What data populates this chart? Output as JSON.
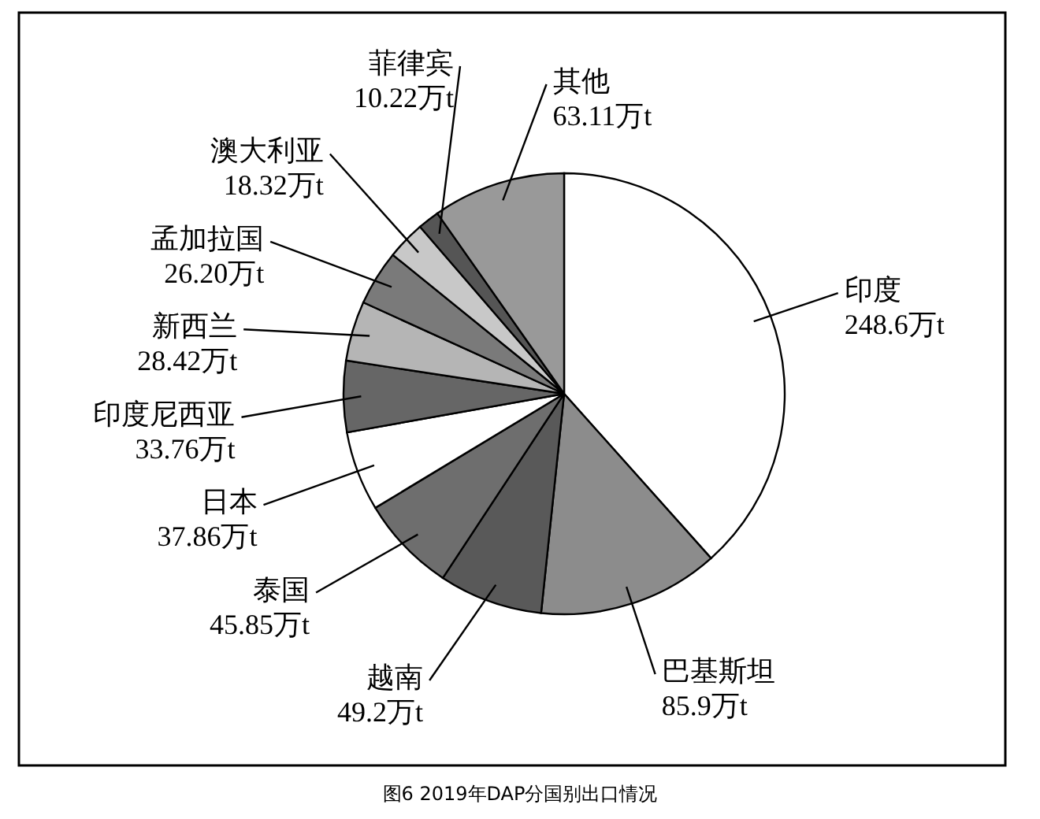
{
  "chart_data": {
    "type": "pie",
    "title": "图6 2019年DAP分国别出口情况",
    "categories": [
      "印度",
      "巴基斯坦",
      "越南",
      "泰国",
      "日本",
      "印度尼西亚",
      "新西兰",
      "孟加拉国",
      "澳大利亚",
      "菲律宾",
      "其他"
    ],
    "values": [
      248.6,
      85.9,
      49.2,
      45.85,
      37.86,
      33.76,
      28.42,
      26.2,
      18.32,
      10.22,
      63.11
    ],
    "value_labels": [
      "248.6万t",
      "85.9万t",
      "49.2万t",
      "45.85万t",
      "37.86万t",
      "33.76万t",
      "28.42万t",
      "26.20万t",
      "18.32万t",
      "10.22万t",
      "63.11万t"
    ],
    "colors": [
      "#ffffff",
      "#8c8c8c",
      "#595959",
      "#6e6e6e",
      "#ffffff",
      "#666666",
      "#b5b5b5",
      "#7a7a7a",
      "#c8c8c8",
      "#555555",
      "#999999"
    ]
  }
}
